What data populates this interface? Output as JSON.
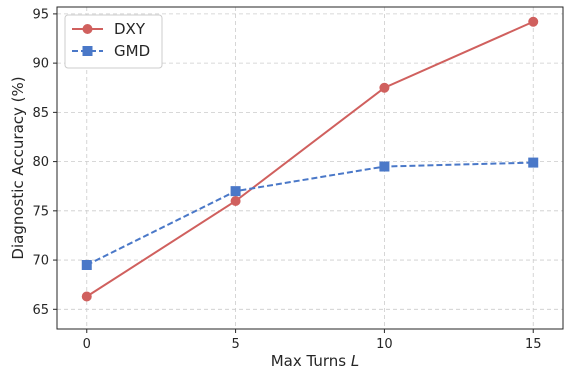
{
  "chart_data": {
    "type": "line",
    "x": [
      0,
      5,
      10,
      15
    ],
    "xticks": [
      "0",
      "5",
      "10",
      "15"
    ],
    "yticks": [
      "65",
      "70",
      "75",
      "80",
      "85",
      "90",
      "95"
    ],
    "xlabel": "Max Turns",
    "xlabel_var": "L",
    "ylabel": "Diagnostic Accuracy (%)",
    "xlim": [
      -1,
      16
    ],
    "ylim": [
      63,
      95.7
    ],
    "grid": true,
    "legend_position": "top-left",
    "series": [
      {
        "name": "DXY",
        "values": [
          66.3,
          76.0,
          87.5,
          94.2
        ],
        "color": "#d0605e",
        "marker": "circle",
        "line_style": "solid"
      },
      {
        "name": "GMD",
        "values": [
          69.5,
          77.0,
          79.5,
          79.9
        ],
        "color": "#4a78c8",
        "marker": "square",
        "line_style": "dashed"
      }
    ]
  }
}
